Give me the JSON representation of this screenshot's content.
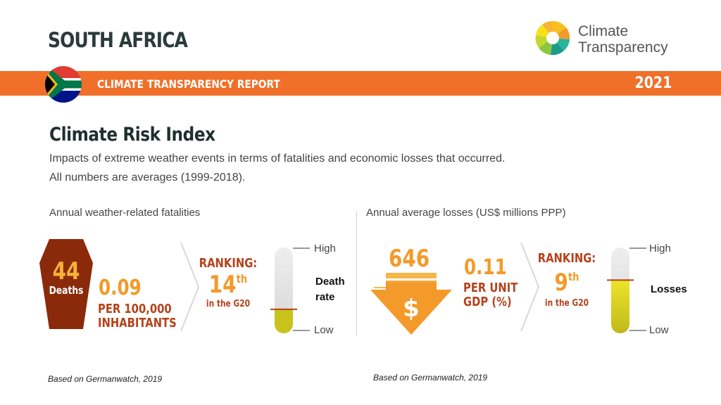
{
  "header": {
    "country": "SOUTH AFRICA",
    "logo_line1": "Climate",
    "logo_line2": "Transparency",
    "logo_icon": "climate-transparency-logo-icon"
  },
  "banner": {
    "title": "CLIMATE TRANSPARENCY REPORT",
    "year": "2021",
    "flag_icon": "south-africa-flag-icon"
  },
  "section": {
    "title": "Climate Risk Index",
    "description_line1": "Impacts of extreme weather events in terms of fatalities and economic losses that occurred.",
    "description_line2": "All numbers are averages (1999-2018)."
  },
  "fatalities": {
    "subtitle": "Annual weather-related fatalities",
    "deaths_value": "44",
    "deaths_label": "Deaths",
    "rate_value": "0.09",
    "rate_unit_line1": "PER 100,000",
    "rate_unit_line2": "INHABITANTS",
    "ranking_label": "RANKING:",
    "ranking_value": "14",
    "ranking_suffix": "th",
    "ranking_scope": "in the G20",
    "scale_high": "High",
    "scale_low": "Low",
    "scale_label_line1": "Death",
    "scale_label_line2": "rate",
    "scale_level": 0.28,
    "source": "Based on Germanwatch, 2019"
  },
  "losses": {
    "subtitle": "Annual average losses (US$ millions PPP)",
    "loss_value": "646",
    "loss_icon": "dollar-arrow-icon",
    "ratio_value": "0.11",
    "ratio_unit_line1": "PER UNIT",
    "ratio_unit_line2": "GDP (%)",
    "ranking_label": "RANKING:",
    "ranking_value": "9",
    "ranking_suffix": "th",
    "ranking_scope": "in the G20",
    "scale_high": "High",
    "scale_low": "Low",
    "scale_label": "Losses",
    "scale_level": 0.62,
    "source": "Based on Germanwatch, 2019"
  },
  "colors": {
    "banner": "#f0702a",
    "accent_orange": "#f39a2a",
    "accent_red": "#b5421b",
    "coffin": "#8a2a0a",
    "thermo_fill": "#c9c21a"
  }
}
